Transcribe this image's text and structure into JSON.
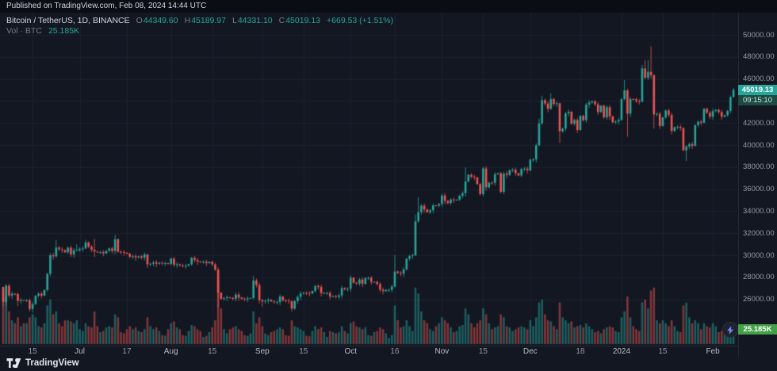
{
  "published_bar": {
    "text": "Published on TradingView.com, Feb 08, 2024 14:44 UTC"
  },
  "legend": {
    "symbol": "Bitcoin / TetherUS, 1D, BINANCE",
    "o_label": "O",
    "o": "44349.60",
    "h_label": "H",
    "h": "45189.97",
    "l_label": "L",
    "l": "44331.10",
    "c_label": "C",
    "c": "45019.13",
    "change": "+669.53 (+1.51%)",
    "vol_label": "Vol · BTC",
    "vol_value": "25.185K"
  },
  "badges": {
    "price": "45019.13",
    "countdown": "09:15:10",
    "volume": "25.185K"
  },
  "footer": {
    "brand": "TradingView"
  },
  "colors": {
    "bg": "#131722",
    "published_bg": "#0a0d14",
    "grid": "#1c2230",
    "axis_text": "#9598a1",
    "text": "#d1d4dc",
    "muted": "#787b86",
    "up": "#26a69a",
    "down": "#ef5350",
    "vol_up": "rgba(38,166,154,0.5)",
    "vol_down": "rgba(239,83,80,0.5)",
    "price_badge_bg": "#26a69a",
    "countdown_bg": "#1c4a43",
    "countdown_text": "#cfe5e1",
    "vol_badge_bg": "#43a047",
    "bolt": "#6f8bf5"
  },
  "chart_data": {
    "type": "candlestick",
    "symbol": "Bitcoin / TetherUS (BINANCE)",
    "interval": "1D",
    "volume_unit": "K BTC",
    "ylim": [
      24000,
      50500
    ],
    "y_ticks": [
      "50000.00",
      "48000.00",
      "46000.00",
      "44000.00",
      "42000.00",
      "40000.00",
      "38000.00",
      "36000.00",
      "34000.00",
      "32000.00",
      "30000.00",
      "28000.00",
      "26000.00"
    ],
    "time_ticks": [
      {
        "label": "15",
        "i": 10
      },
      {
        "label": "Jul",
        "i": 26
      },
      {
        "label": "17",
        "i": 42
      },
      {
        "label": "Aug",
        "i": 57
      },
      {
        "label": "15",
        "i": 71
      },
      {
        "label": "Sep",
        "i": 88
      },
      {
        "label": "15",
        "i": 102
      },
      {
        "label": "Oct",
        "i": 118
      },
      {
        "label": "16",
        "i": 133
      },
      {
        "label": "Nov",
        "i": 149
      },
      {
        "label": "15",
        "i": 163
      },
      {
        "label": "Dec",
        "i": 179
      },
      {
        "label": "18",
        "i": 196
      },
      {
        "label": "2024",
        "i": 210
      },
      {
        "label": "15",
        "i": 224
      },
      {
        "label": "Feb",
        "i": 241
      }
    ],
    "first_open": 27120,
    "candles_format": "[close, volumeK, high(optional), low(optional)] ; open = previous close",
    "candles": [
      [
        25750,
        85,
        null,
        25350
      ],
      [
        27240,
        80,
        27400,
        25400
      ],
      [
        26350,
        55
      ],
      [
        26500,
        40
      ],
      [
        26480,
        35
      ],
      [
        25850,
        45,
        null,
        25380
      ],
      [
        25940,
        30
      ],
      [
        25900,
        35
      ],
      [
        25920,
        35
      ],
      [
        25125,
        45
      ],
      [
        25570,
        50,
        null,
        24800
      ],
      [
        26330,
        45
      ],
      [
        26510,
        30
      ],
      [
        26340,
        28
      ],
      [
        26850,
        35
      ],
      [
        28320,
        65,
        28400
      ],
      [
        30000,
        75,
        30200
      ],
      [
        29900,
        50
      ],
      [
        30700,
        55,
        31400
      ],
      [
        30550,
        35
      ],
      [
        30480,
        30
      ],
      [
        30270,
        40
      ],
      [
        30690,
        40
      ],
      [
        30080,
        38
      ],
      [
        30450,
        35
      ],
      [
        30480,
        40,
        31000
      ],
      [
        30590,
        25
      ],
      [
        30620,
        22
      ],
      [
        31160,
        35,
        31390
      ],
      [
        30780,
        30
      ],
      [
        30510,
        28
      ],
      [
        30340,
        55,
        31500,
        29850
      ],
      [
        30290,
        30
      ],
      [
        30290,
        20
      ],
      [
        30170,
        22
      ],
      [
        30410,
        28
      ],
      [
        30620,
        30
      ],
      [
        30380,
        28
      ],
      [
        31460,
        50,
        31850
      ],
      [
        30320,
        45
      ],
      [
        30290,
        20
      ],
      [
        30230,
        18
      ],
      [
        30140,
        25
      ],
      [
        29860,
        30
      ],
      [
        29910,
        25
      ],
      [
        29800,
        28
      ],
      [
        29900,
        22
      ],
      [
        29790,
        20
      ],
      [
        30080,
        25
      ],
      [
        29180,
        45,
        null,
        28860
      ],
      [
        29230,
        30
      ],
      [
        29350,
        25
      ],
      [
        29220,
        28
      ],
      [
        29320,
        22
      ],
      [
        29280,
        15
      ],
      [
        29280,
        14
      ],
      [
        29230,
        25
      ],
      [
        29700,
        35
      ],
      [
        29150,
        38
      ],
      [
        29180,
        28
      ],
      [
        29090,
        25
      ],
      [
        29050,
        15
      ],
      [
        29050,
        14
      ],
      [
        29180,
        22
      ],
      [
        29765,
        32
      ],
      [
        29560,
        30
      ],
      [
        29430,
        25
      ],
      [
        29400,
        22
      ],
      [
        29420,
        12
      ],
      [
        29280,
        14
      ],
      [
        29410,
        20
      ],
      [
        29170,
        28
      ],
      [
        28700,
        40,
        null,
        28560
      ],
      [
        26600,
        110,
        null,
        25250
      ],
      [
        26050,
        60
      ],
      [
        26100,
        25
      ],
      [
        26190,
        18
      ],
      [
        26120,
        25
      ],
      [
        26040,
        28
      ],
      [
        26430,
        30
      ],
      [
        26160,
        25
      ],
      [
        26050,
        22
      ],
      [
        26010,
        15
      ],
      [
        26100,
        14
      ],
      [
        26120,
        18
      ],
      [
        27720,
        55,
        28140
      ],
      [
        27300,
        35
      ],
      [
        25935,
        45
      ],
      [
        25800,
        30,
        null,
        25350
      ],
      [
        25870,
        18
      ],
      [
        25970,
        15
      ],
      [
        25820,
        20
      ],
      [
        25750,
        22
      ],
      [
        25750,
        25
      ],
      [
        26250,
        28
      ],
      [
        25900,
        25
      ],
      [
        25890,
        15
      ],
      [
        25830,
        14
      ],
      [
        25160,
        40,
        null,
        24900
      ],
      [
        25840,
        30
      ],
      [
        26220,
        28
      ],
      [
        26530,
        25
      ],
      [
        26600,
        22
      ],
      [
        26570,
        14
      ],
      [
        26530,
        13
      ],
      [
        26760,
        22
      ],
      [
        27210,
        30
      ],
      [
        27120,
        25
      ],
      [
        26570,
        28
      ],
      [
        26580,
        20
      ],
      [
        26580,
        12
      ],
      [
        26250,
        22
      ],
      [
        26300,
        20
      ],
      [
        26220,
        18
      ],
      [
        26360,
        20
      ],
      [
        27020,
        30
      ],
      [
        26910,
        22
      ],
      [
        26960,
        18
      ],
      [
        27970,
        35
      ],
      [
        27500,
        38
      ],
      [
        27430,
        30
      ],
      [
        27800,
        28
      ],
      [
        27410,
        25
      ],
      [
        27930,
        28
      ],
      [
        27950,
        15
      ],
      [
        27590,
        14
      ],
      [
        27590,
        20
      ],
      [
        27390,
        22
      ],
      [
        26870,
        28
      ],
      [
        26750,
        25
      ],
      [
        26860,
        18
      ],
      [
        26860,
        10
      ],
      [
        27160,
        15
      ],
      [
        28520,
        65,
        30020
      ],
      [
        28410,
        40
      ],
      [
        28330,
        28
      ],
      [
        28720,
        30
      ],
      [
        29680,
        40
      ],
      [
        29920,
        30
      ],
      [
        29990,
        22
      ],
      [
        33080,
        95,
        33700
      ],
      [
        33910,
        85,
        35280
      ],
      [
        34500,
        55
      ],
      [
        34160,
        40
      ],
      [
        33910,
        35
      ],
      [
        34090,
        25
      ],
      [
        34530,
        22
      ],
      [
        34500,
        30
      ],
      [
        34650,
        35
      ],
      [
        35430,
        45,
        35600
      ],
      [
        34940,
        40
      ],
      [
        34730,
        35
      ],
      [
        35060,
        28
      ],
      [
        35010,
        20
      ],
      [
        35050,
        22
      ],
      [
        35400,
        30
      ],
      [
        35640,
        32
      ],
      [
        36700,
        60,
        37970
      ],
      [
        37310,
        50
      ],
      [
        37130,
        35
      ],
      [
        37070,
        28
      ],
      [
        36460,
        35
      ],
      [
        35550,
        40
      ],
      [
        37880,
        60
      ],
      [
        36160,
        50
      ],
      [
        36590,
        35
      ],
      [
        36570,
        25
      ],
      [
        37360,
        28
      ],
      [
        37450,
        30
      ],
      [
        35750,
        50
      ],
      [
        37410,
        45
      ],
      [
        37290,
        30
      ],
      [
        37710,
        28
      ],
      [
        37780,
        22
      ],
      [
        37450,
        25
      ],
      [
        37240,
        28
      ],
      [
        37820,
        30
      ],
      [
        37860,
        28
      ],
      [
        37710,
        25
      ],
      [
        38680,
        40
      ],
      [
        38690,
        30
      ],
      [
        39970,
        45
      ],
      [
        41980,
        70,
        42420
      ],
      [
        44080,
        75,
        44480
      ],
      [
        43770,
        50
      ],
      [
        43290,
        40
      ],
      [
        44170,
        38,
        44700
      ],
      [
        43720,
        30
      ],
      [
        43790,
        25
      ],
      [
        41250,
        70,
        null,
        40200
      ],
      [
        41490,
        45
      ],
      [
        42870,
        40
      ],
      [
        43020,
        35
      ],
      [
        41940,
        38
      ],
      [
        42280,
        28
      ],
      [
        41370,
        30
      ],
      [
        42660,
        32
      ],
      [
        42260,
        28
      ],
      [
        43670,
        35
      ],
      [
        43860,
        30
      ],
      [
        43970,
        25
      ],
      [
        43700,
        20
      ],
      [
        42990,
        22
      ],
      [
        43580,
        18
      ],
      [
        42520,
        25
      ],
      [
        43440,
        28
      ],
      [
        42600,
        30
      ],
      [
        42070,
        28
      ],
      [
        42140,
        22
      ],
      [
        42280,
        20
      ],
      [
        44180,
        45
      ],
      [
        44960,
        55,
        45900
      ],
      [
        42850,
        80,
        null,
        40750
      ],
      [
        44180,
        45
      ],
      [
        44160,
        30
      ],
      [
        43990,
        25
      ],
      [
        43940,
        22
      ],
      [
        46950,
        70,
        47280
      ],
      [
        46110,
        75,
        47700
      ],
      [
        46650,
        60,
        47690
      ],
      [
        46340,
        90,
        48969
      ],
      [
        42780,
        95,
        null,
        41500
      ],
      [
        42840,
        40
      ],
      [
        41730,
        35
      ],
      [
        42510,
        40
      ],
      [
        43140,
        35
      ],
      [
        42740,
        30
      ],
      [
        41280,
        40
      ],
      [
        41620,
        30
      ],
      [
        41660,
        22
      ],
      [
        41550,
        20
      ],
      [
        39520,
        65
      ],
      [
        39880,
        70,
        null,
        38555
      ],
      [
        40080,
        45
      ],
      [
        39940,
        35
      ],
      [
        41810,
        40
      ],
      [
        42120,
        35
      ],
      [
        42030,
        25
      ],
      [
        43300,
        35
      ],
      [
        42940,
        30
      ],
      [
        42580,
        28
      ],
      [
        43080,
        35
      ],
      [
        43190,
        30
      ],
      [
        43000,
        20
      ],
      [
        42580,
        22
      ],
      [
        42710,
        25
      ],
      [
        43100,
        28
      ],
      [
        44349.6,
        35
      ],
      [
        45019.13,
        25.185,
        45189.97,
        44331.1
      ]
    ]
  }
}
